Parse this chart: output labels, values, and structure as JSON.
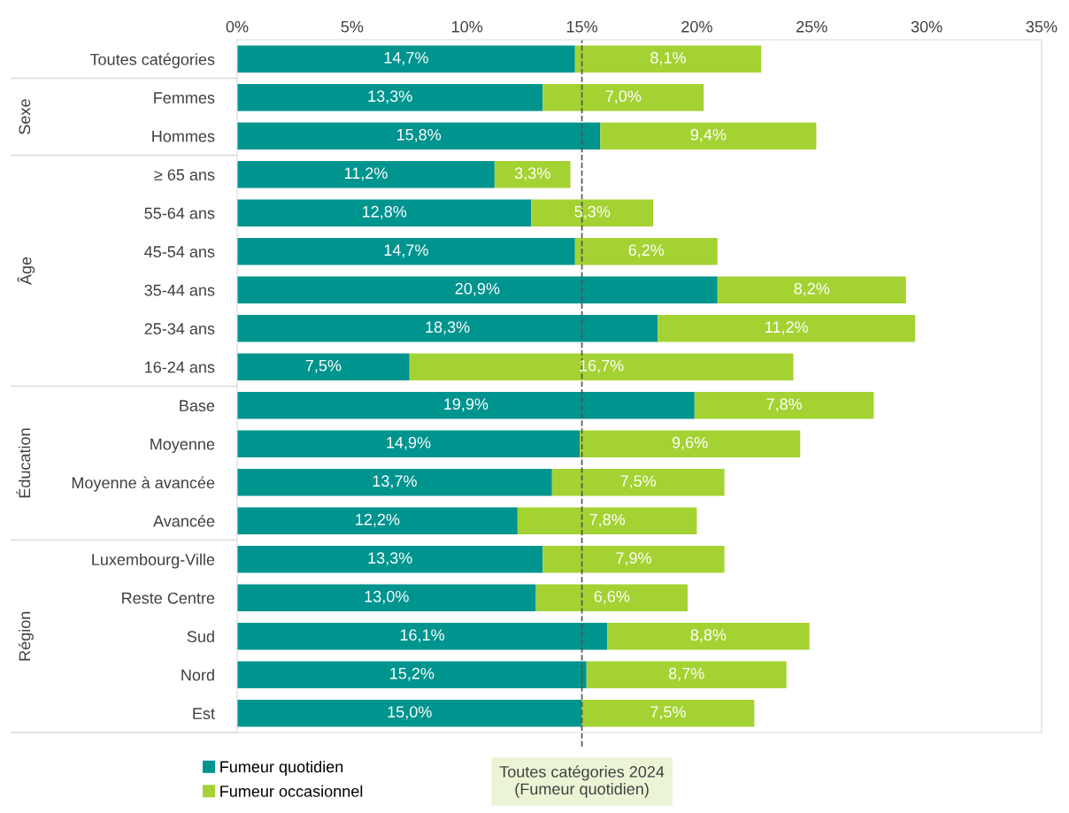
{
  "chart_data": {
    "type": "bar",
    "orientation": "horizontal",
    "stacked": true,
    "categories": [
      "Toutes catégories",
      "Femmes",
      "Hommes",
      "≥ 65 ans",
      "55-64 ans",
      "45-54 ans",
      "35-44 ans",
      "25-34 ans",
      "16-24 ans",
      "Base",
      "Moyenne",
      "Moyenne à avancée",
      "Avancée",
      "Luxembourg-Ville",
      "Reste Centre",
      "Sud",
      "Nord",
      "Est"
    ],
    "series": [
      {
        "name": "Fumeur quotidien",
        "color": "#00948f",
        "values": [
          14.7,
          13.3,
          15.8,
          11.2,
          12.8,
          14.7,
          20.9,
          18.3,
          7.5,
          19.9,
          14.9,
          13.7,
          12.2,
          13.3,
          13.0,
          16.1,
          15.2,
          15.0
        ],
        "value_labels": [
          "14,7%",
          "13,3%",
          "15,8%",
          "11,2%",
          "12,8%",
          "14,7%",
          "20,9%",
          "18,3%",
          "7,5%",
          "19,9%",
          "14,9%",
          "13,7%",
          "12,2%",
          "13,3%",
          "13,0%",
          "16,1%",
          "15,2%",
          "15,0%"
        ]
      },
      {
        "name": "Fumeur occasionnel",
        "color": "#a5d233",
        "values": [
          8.1,
          7.0,
          9.4,
          3.3,
          5.3,
          6.2,
          8.2,
          11.2,
          16.7,
          7.8,
          9.6,
          7.5,
          7.8,
          7.9,
          6.6,
          8.8,
          8.7,
          7.5
        ],
        "value_labels": [
          "8,1%",
          "7,0%",
          "9,4%",
          "3,3%",
          "5,3%",
          "6,2%",
          "8,2%",
          "11,2%",
          "16,7%",
          "7,8%",
          "9,6%",
          "7,5%",
          "7,8%",
          "7,9%",
          "6,6%",
          "8,8%",
          "8,7%",
          "7,5%"
        ]
      }
    ],
    "xlim": [
      0,
      35
    ],
    "xticks": [
      {
        "value": 0,
        "label": "0%"
      },
      {
        "value": 5,
        "label": "5%"
      },
      {
        "value": 10,
        "label": "10%"
      },
      {
        "value": 15,
        "label": "15%"
      },
      {
        "value": 20,
        "label": "20%"
      },
      {
        "value": 25,
        "label": "25%"
      },
      {
        "value": 30,
        "label": "30%"
      },
      {
        "value": 35,
        "label": "35%"
      }
    ],
    "ref_lines": [
      {
        "axis": "x",
        "value": 15.0,
        "label": "Toutes catégories 2024\n(Fumeur quotidien)",
        "color": "#555555",
        "line_style": "dashed"
      }
    ],
    "annotations": [
      "Sexe",
      "Âge",
      "Éducation",
      "Région"
    ],
    "grid": false,
    "legend": "bottom left"
  }
}
